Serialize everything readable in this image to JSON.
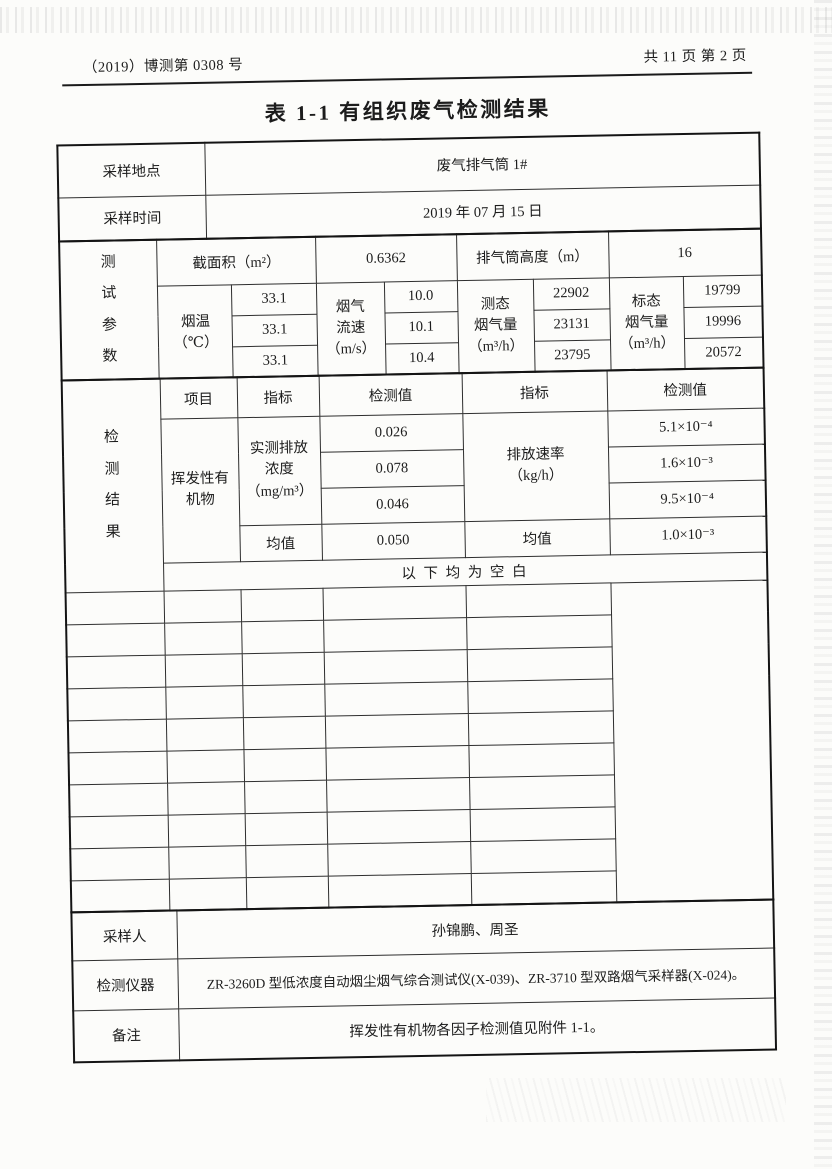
{
  "header": {
    "doc_number": "（2019）博测第 0308 号",
    "page_info": "共 11 页  第 2 页"
  },
  "title": "表 1-1  有组织废气检测结果",
  "table": {
    "sampling_site": {
      "label": "采样地点",
      "value": "废气排气筒 1#"
    },
    "sampling_time": {
      "label": "采样时间",
      "value": "2019 年 07 月 15 日"
    },
    "test_params": {
      "section_label": "测\n试\n参\n数",
      "cross_section": {
        "label": "截面积（m²）",
        "value": "0.6362"
      },
      "stack_height": {
        "label": "排气筒高度（m）",
        "value": "16"
      },
      "flue_temp": {
        "label": "烟温（℃）",
        "values": [
          "33.1",
          "33.1",
          "33.1"
        ]
      },
      "gas_velocity": {
        "label": "烟气\n流速\n（m/s）",
        "values": [
          "10.0",
          "10.1",
          "10.4"
        ]
      },
      "measured_flow": {
        "label": "测态\n烟气量\n（m³/h）",
        "values": [
          "22902",
          "23131",
          "23795"
        ]
      },
      "standard_flow": {
        "label": "标态\n烟气量\n（m³/h）",
        "values": [
          "19799",
          "19996",
          "20572"
        ]
      }
    },
    "results": {
      "section_label": "检\n测\n结\n果",
      "headers": {
        "item": "项目",
        "indicator": "指标",
        "value": "检测值",
        "indicator2": "指标",
        "value2": "检测值"
      },
      "item_name": "挥发性有\n机物",
      "concentration": {
        "label": "实测排放\n浓度\n（mg/m³）",
        "values": [
          "0.026",
          "0.078",
          "0.046"
        ],
        "mean_label": "均值",
        "mean_value": "0.050"
      },
      "emission_rate": {
        "label": "排放速率\n（kg/h）",
        "values": [
          "5.1×10⁻⁴",
          "1.6×10⁻³",
          "9.5×10⁻⁴"
        ],
        "mean_label": "均值",
        "mean_value": "1.0×10⁻³"
      },
      "blank_note": "以 下 均 为 空 白",
      "empty_row_count": 10
    },
    "sampler": {
      "label": "采样人",
      "value": "孙锦鹏、周圣"
    },
    "instrument": {
      "label": "检测仪器",
      "value": "ZR-3260D 型低浓度自动烟尘烟气综合测试仪(X-039)、ZR-3710 型双路烟气采样器(X-024)。"
    },
    "remark": {
      "label": "备注",
      "value": "挥发性有机物各因子检测值见附件 1-1。"
    }
  }
}
